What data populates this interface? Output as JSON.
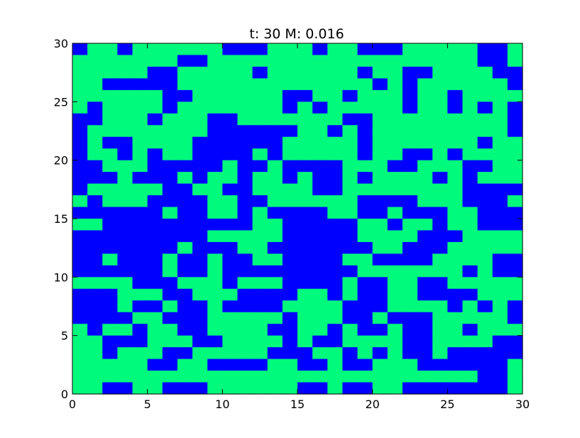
{
  "chart_data": {
    "type": "heatmap",
    "title": "t: 30  M: 0.016",
    "xlabel": "",
    "ylabel": "",
    "xlim": [
      0,
      30
    ],
    "ylim": [
      0,
      30
    ],
    "xticks": [
      0,
      5,
      10,
      15,
      20,
      25,
      30
    ],
    "yticks": [
      0,
      5,
      10,
      15,
      20,
      25,
      30
    ],
    "grid": false,
    "colors": {
      "1": "#00fa7c",
      "0": "#0000ff"
    },
    "grid_rows_top_to_bottom": [
      "011011111100011101100011111001",
      "111111100111111111111111111001",
      "111110011111011111101100111100",
      "110000011111111111110101111110",
      "111111001111110011011101101111",
      "101111011111110101111101101010",
      "001110111001111111001111111110",
      "011111111000000110101111111110",
      "010011110000001111101111111011",
      "011010110000101111101100101111",
      "001110000010010000111001110011",
      "000100010110110100101111010111",
      "011111001100111100111111110000",
      "101110000110011111100001110001",
      "000000100110100001100100011000",
      "110000000000110000011011011000",
      "000000000111110000011110001111",
      "000000010001100000001100011111",
      "001000100100110000110000111100",
      "000000100100000000011111110100",
      "111100011101110000100110011111",
      "000111001110000110100110000111",
      "000100100100001111000111101010",
      "000011000111110111001000111110",
      "101101100111100110100100110111",
      "110001110011110100111100111100",
      "110111001111100011010100100000",
      "111110011000011001001110000001",
      "111111111111111111111111111001",
      "110011000111111001001100000001"
    ],
    "cell_to_value_note": ""
  }
}
